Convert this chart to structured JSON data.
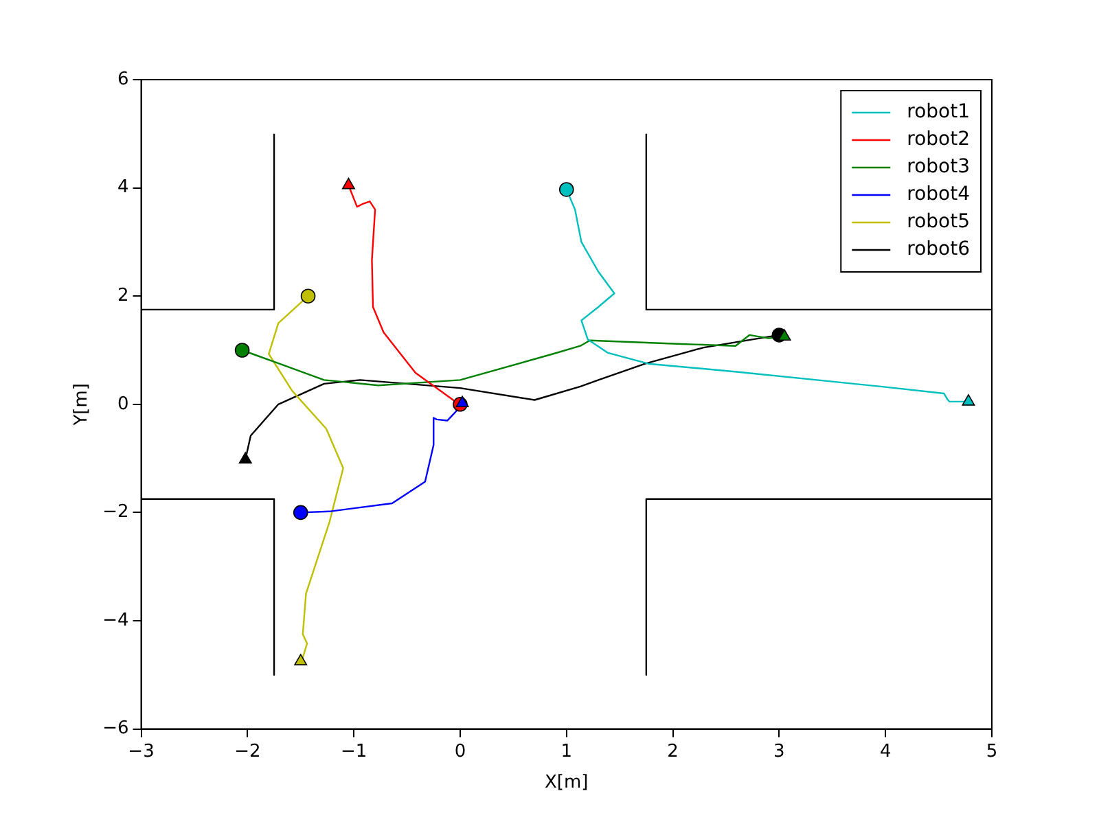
{
  "chart_data": {
    "type": "line",
    "xlabel": "X[m]",
    "ylabel": "Y[m]",
    "xlim": [
      -3,
      5
    ],
    "ylim": [
      -6,
      6
    ],
    "xticks": [
      -3,
      -2,
      -1,
      0,
      1,
      2,
      3,
      4,
      5
    ],
    "yticks": [
      -6,
      -4,
      -2,
      0,
      2,
      4,
      6
    ],
    "grid": false,
    "legend": "top right",
    "marker": "none",
    "line_style": "solid",
    "series": [
      {
        "name": "robot1",
        "color": "#00bfbf",
        "x": [
          1,
          1.08,
          1.14,
          1.3,
          1.45,
          1.3,
          1.14,
          1.2,
          1.39,
          1.77,
          2.6,
          3.45,
          4.0,
          4.55,
          4.58,
          4.6,
          4.78
        ],
        "values": [
          3.97,
          3.6,
          3.0,
          2.45,
          2.05,
          1.8,
          1.55,
          1.2,
          0.95,
          0.75,
          0.6,
          0.43,
          0.32,
          0.2,
          0.1,
          0.05,
          0.05
        ]
      },
      {
        "name": "robot2",
        "color": "#ff0000",
        "x": [
          -1.05,
          -0.97,
          -0.92,
          -0.85,
          -0.8,
          -0.83,
          -0.82,
          -0.72,
          -0.42,
          -0.03,
          0
        ],
        "values": [
          4.05,
          3.65,
          3.7,
          3.75,
          3.6,
          2.67,
          1.8,
          1.33,
          0.58,
          0.03,
          0
        ]
      },
      {
        "name": "robot3",
        "color": "#008000",
        "x": [
          -2.05,
          -1.7,
          -1.28,
          -0.77,
          0.0,
          0.87,
          1.13,
          1.22,
          2.0,
          2.59,
          2.72,
          2.9,
          3.05
        ],
        "values": [
          1.0,
          0.75,
          0.45,
          0.35,
          0.45,
          0.93,
          1.08,
          1.18,
          1.12,
          1.08,
          1.28,
          1.22,
          1.25
        ]
      },
      {
        "name": "robot4",
        "color": "#0000ff",
        "x": [
          -1.5,
          -1.23,
          -0.64,
          -0.33,
          -0.25,
          -0.25,
          -0.22,
          -0.12,
          0
        ],
        "values": [
          -2,
          -1.98,
          -1.83,
          -1.43,
          -0.75,
          -0.25,
          -0.28,
          -0.3,
          -0.05
        ]
      },
      {
        "name": "robot5",
        "color": "#bfbf00",
        "x": [
          -1.43,
          -1.71,
          -1.8,
          -1.58,
          -1.26,
          -1.1,
          -1.23,
          -1.45,
          -1.48,
          -1.44,
          -1.48,
          -1.5
        ],
        "values": [
          2.0,
          1.5,
          0.93,
          0.25,
          -0.45,
          -1.18,
          -2.18,
          -3.5,
          -4.25,
          -4.42,
          -4.68,
          -4.75
        ]
      },
      {
        "name": "robot6",
        "color": "#000000",
        "x": [
          3.0,
          2.29,
          1.74,
          1.3,
          1.13,
          0.7,
          0.0,
          -0.94,
          -1.28,
          -1.71,
          -1.97,
          -2.02
        ],
        "values": [
          1.28,
          1.05,
          0.75,
          0.45,
          0.33,
          0.08,
          0.3,
          0.45,
          0.38,
          0.0,
          -0.58,
          -1.02
        ]
      },
      {
        "type": "scatter",
        "marker": "circle",
        "colors": [
          "#00bfbf",
          "#ff0000",
          "#008000",
          "#0000ff",
          "#bfbf00",
          "#000000"
        ],
        "x": [
          1,
          0,
          -2.05,
          -1.5,
          -1.43,
          3.0
        ],
        "values": [
          3.97,
          0,
          1.0,
          -2,
          2.0,
          1.28
        ]
      },
      {
        "type": "scatter",
        "marker": "triangle",
        "colors": [
          "#00bfbf",
          "#ff0000",
          "#008000",
          "#0000ff",
          "#bfbf00",
          "#000000"
        ],
        "x": [
          4.78,
          -1.05,
          3.05,
          0.02,
          -1.5,
          -2.02
        ],
        "values": [
          0.05,
          4.05,
          1.25,
          0.02,
          -4.75,
          -1.02
        ]
      },
      {
        "color": "#000000",
        "x": [
          -3,
          -1.75,
          -1.75
        ],
        "values": [
          1.75,
          1.75,
          5
        ]
      },
      {
        "color": "#000000",
        "x": [
          5,
          1.75,
          1.75
        ],
        "values": [
          1.75,
          1.75,
          5
        ]
      },
      {
        "color": "#000000",
        "x": [
          -3,
          -1.75,
          -1.75
        ],
        "values": [
          -1.75,
          -1.75,
          -5
        ]
      },
      {
        "color": "#000000",
        "x": [
          5,
          1.75,
          1.75
        ],
        "values": [
          -1.75,
          -1.75,
          -5
        ]
      }
    ]
  }
}
